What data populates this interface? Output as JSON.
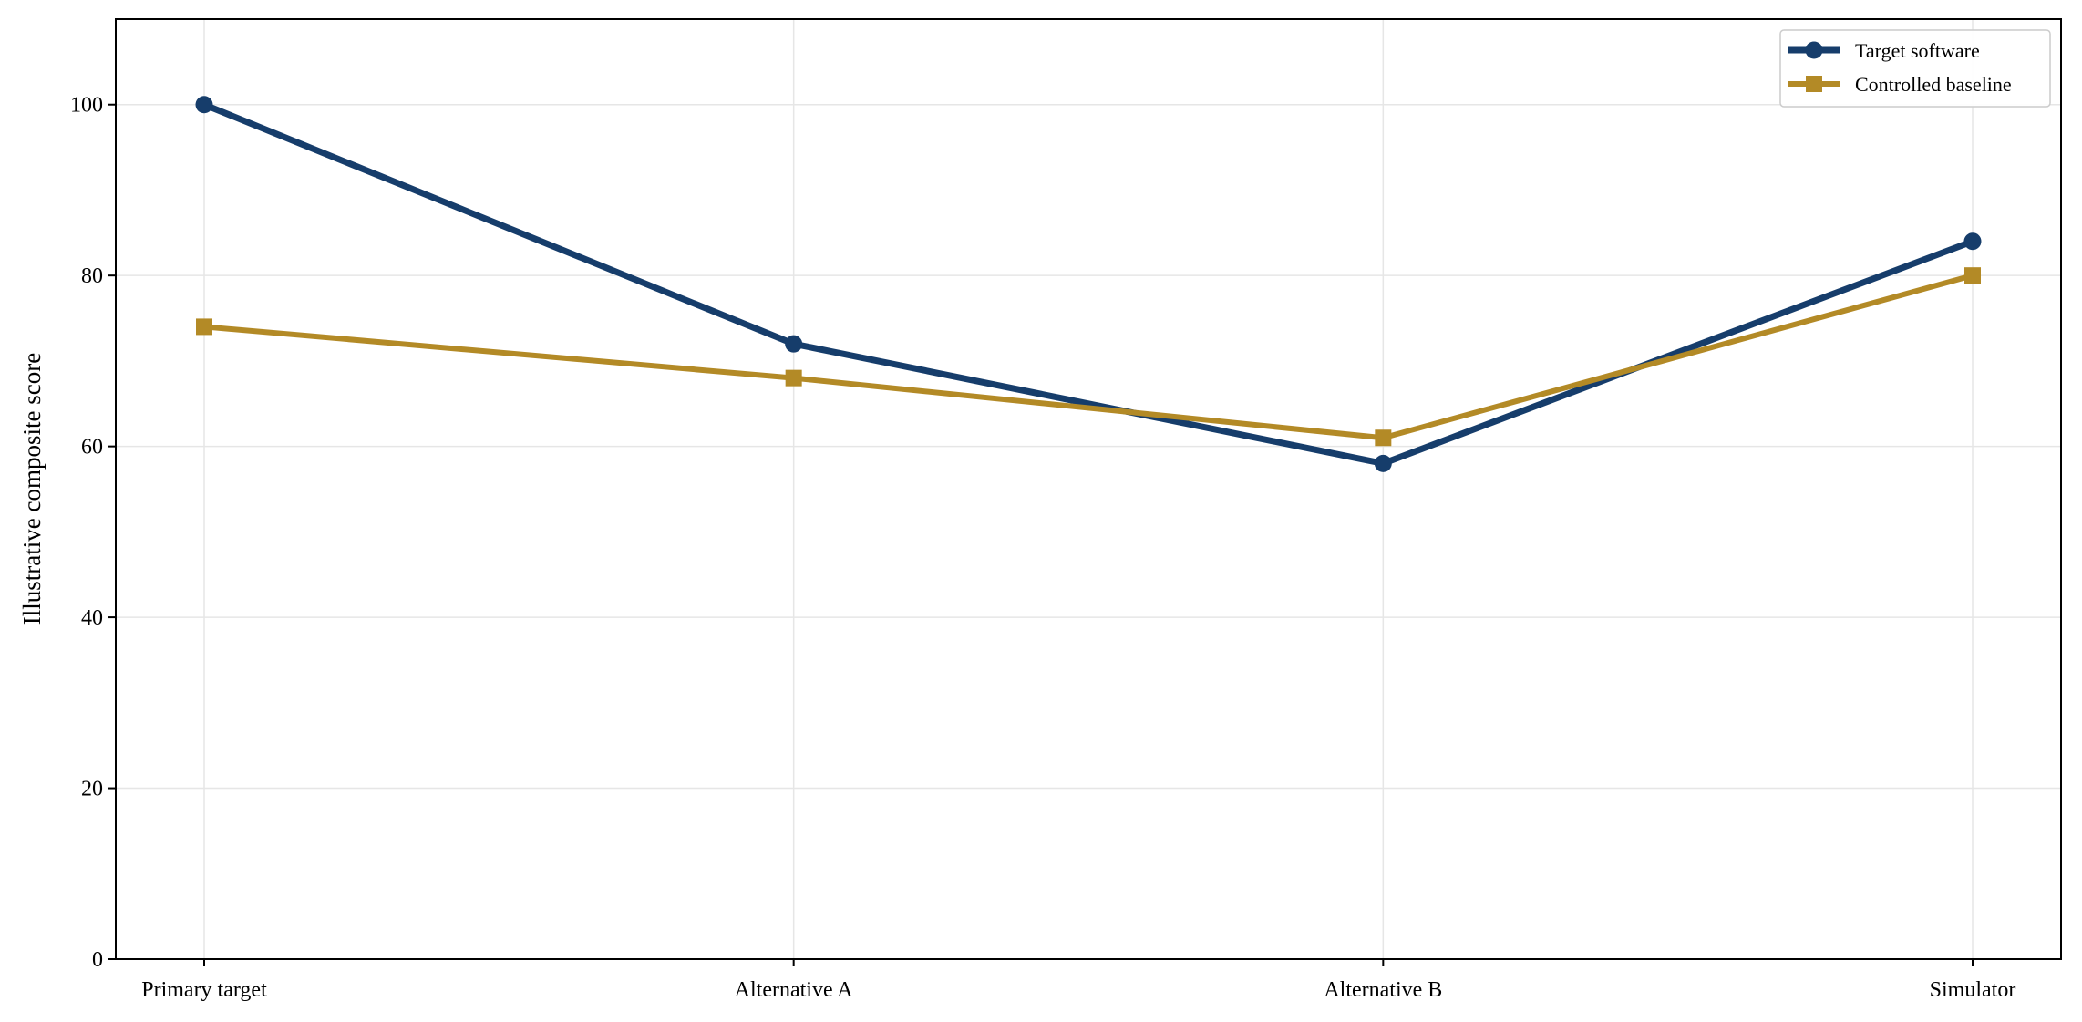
{
  "chart_data": {
    "type": "line",
    "title": "",
    "xlabel": "",
    "ylabel": "Illustrative composite score",
    "categories": [
      "Primary target",
      "Alternative A",
      "Alternative B",
      "Simulator"
    ],
    "ylim": [
      0,
      110
    ],
    "yticks": [
      0,
      20,
      40,
      60,
      80,
      100
    ],
    "grid": true,
    "legend_position": "top-right",
    "series": [
      {
        "name": "Target software",
        "values": [
          100,
          72,
          58,
          84
        ],
        "color": "#163d6b",
        "marker": "circle"
      },
      {
        "name": "Controlled baseline",
        "values": [
          74,
          68,
          61,
          80
        ],
        "color": "#b38a26",
        "marker": "square"
      }
    ]
  }
}
